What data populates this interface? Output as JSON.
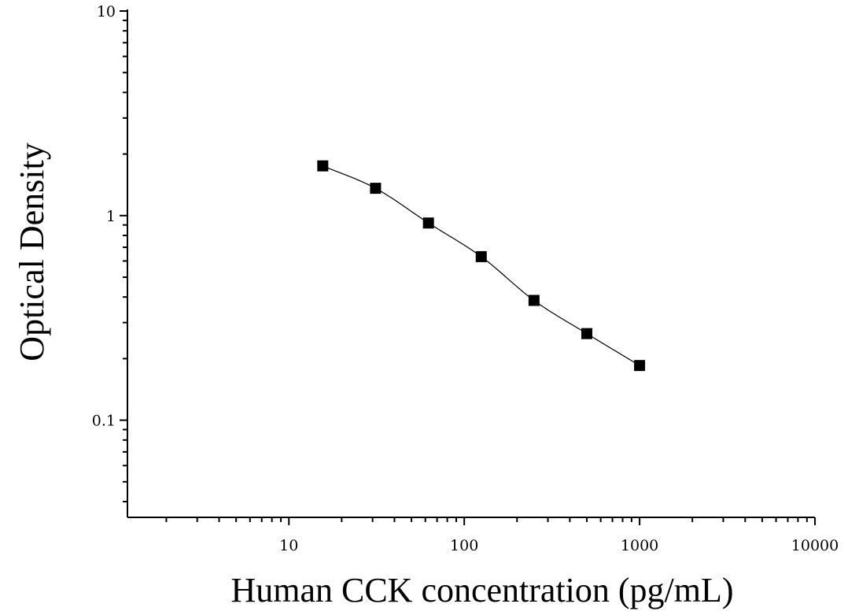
{
  "chart_data": {
    "type": "scatter",
    "title": "",
    "xlabel": "Human CCK concentration (pg/mL)",
    "ylabel": "Optical Density",
    "x_scale": "log",
    "y_scale": "log",
    "xlim": [
      1.2,
      10000
    ],
    "ylim": [
      0.0335,
      10
    ],
    "x_ticks": [
      "10",
      "100",
      "1000",
      "10000"
    ],
    "y_ticks": [
      "10",
      "1",
      "0.1"
    ],
    "grid": false,
    "legend": "none",
    "marker": "filled-square",
    "color": "#000000",
    "series": [
      {
        "x": [
          15.6,
          31.2,
          62.5,
          125,
          250,
          500,
          1000
        ],
        "y": [
          1.75,
          1.36,
          0.92,
          0.63,
          0.385,
          0.265,
          0.185
        ],
        "fit_curve": true
      }
    ]
  }
}
